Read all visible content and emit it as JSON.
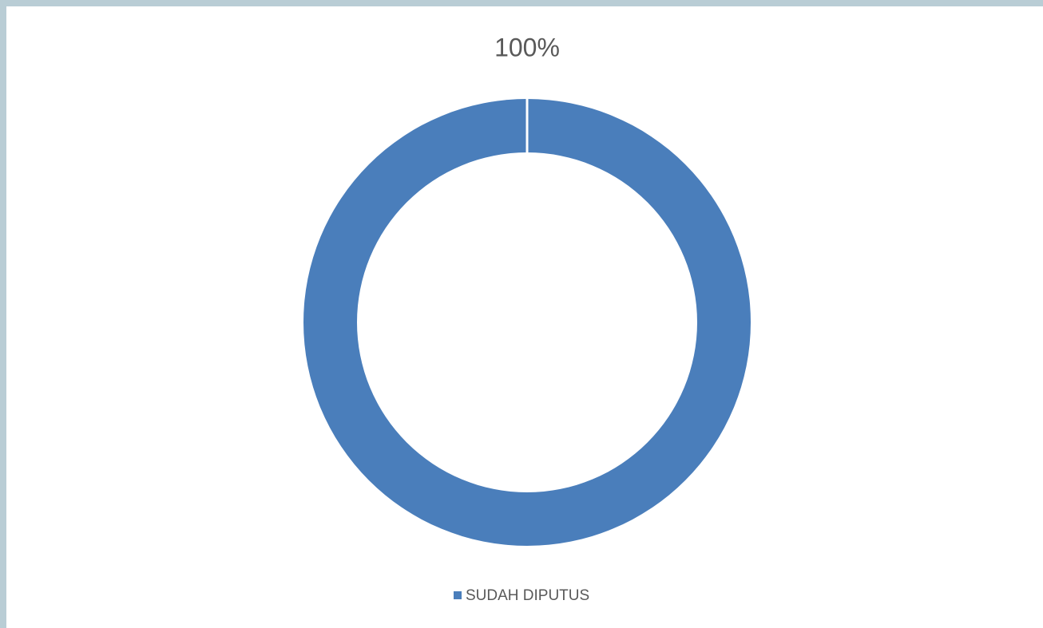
{
  "chart_data": {
    "type": "doughnut",
    "categories": [
      "SUDAH DIPUTUS"
    ],
    "values": [
      100
    ],
    "value_labels": [
      "100%"
    ],
    "colors": [
      "#4a7ebb"
    ],
    "legend": "bottom"
  }
}
